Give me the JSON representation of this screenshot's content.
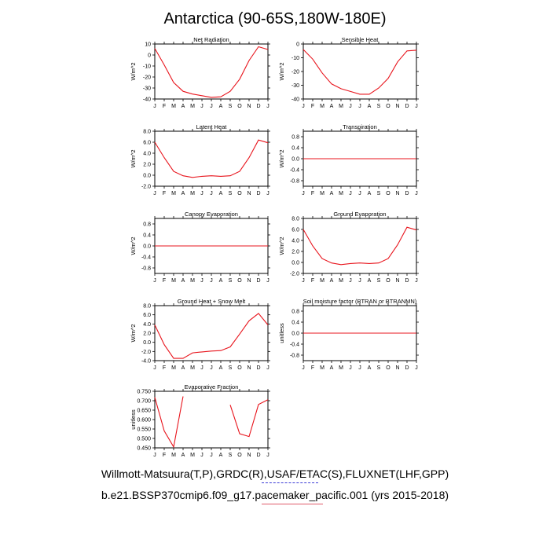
{
  "title": "Antarctica (90-65S,180W-180E)",
  "captions": {
    "line1": "Willmott-Matsuura(T,P),GRDC(R),USAF/ETAC(S),FLUXNET(LHF,GPP)",
    "line2": "b.e21.BSSP370cmip6.f09_g17.pacemaker_pacific.001 (yrs 2015-2018)"
  },
  "colors": {
    "series": "#e8141c",
    "axes": "#000000"
  },
  "chart_data": [
    {
      "type": "line",
      "title": "Net Radiation",
      "ylabel": "W/m^2",
      "x": [
        "J",
        "F",
        "M",
        "A",
        "M",
        "J",
        "J",
        "A",
        "S",
        "O",
        "N",
        "D",
        "J"
      ],
      "ylim": [
        -40,
        10
      ],
      "yticks": [
        10,
        0,
        -10,
        -20,
        -30,
        -40
      ],
      "ytick_labels": [
        "10",
        "0",
        "-10",
        "-20",
        "-30",
        "-40"
      ],
      "values": [
        6,
        -9,
        -25,
        -33,
        -35.5,
        -37,
        -38.5,
        -38,
        -33,
        -22,
        -5,
        7.5,
        5
      ]
    },
    {
      "type": "line",
      "title": "Sensible Heat",
      "ylabel": "W/m^2",
      "x": [
        "J",
        "F",
        "M",
        "A",
        "M",
        "J",
        "J",
        "A",
        "S",
        "O",
        "N",
        "D",
        "J"
      ],
      "ylim": [
        -40,
        0
      ],
      "yticks": [
        0,
        -10,
        -20,
        -30,
        -40
      ],
      "ytick_labels": [
        "0",
        "-10",
        "-20",
        "-30",
        "-40"
      ],
      "values": [
        -4,
        -11,
        -21,
        -29,
        -32.5,
        -34.5,
        -36.5,
        -36.5,
        -32,
        -25,
        -13,
        -5,
        -4.5
      ]
    },
    {
      "type": "line",
      "title": "Latent Heat",
      "ylabel": "W/m^2",
      "x": [
        "J",
        "F",
        "M",
        "A",
        "M",
        "J",
        "J",
        "A",
        "S",
        "O",
        "N",
        "D",
        "J"
      ],
      "ylim": [
        -2,
        8
      ],
      "yticks": [
        8,
        6,
        4,
        2,
        0,
        -2
      ],
      "ytick_labels": [
        "8.0",
        "6.0",
        "4.0",
        "2.0",
        "0.0",
        "-2.0"
      ],
      "values": [
        6,
        3.2,
        0.7,
        -0.1,
        -0.4,
        -0.2,
        -0.1,
        -0.2,
        -0.1,
        0.7,
        3.2,
        6.4,
        5.9
      ]
    },
    {
      "type": "line",
      "title": "Transpiration",
      "ylabel": "W/m^2",
      "x": [
        "J",
        "F",
        "M",
        "A",
        "M",
        "J",
        "J",
        "A",
        "S",
        "O",
        "N",
        "D",
        "J"
      ],
      "ylim": [
        -1,
        1
      ],
      "yticks": [
        0.8,
        0.4,
        0,
        -0.4,
        -0.8
      ],
      "ytick_labels": [
        "0.8",
        "0.4",
        "0.0",
        "-0.4",
        "-0.8"
      ],
      "values": [
        0,
        0,
        0,
        0,
        0,
        0,
        0,
        0,
        0,
        0,
        0,
        0,
        0
      ]
    },
    {
      "type": "line",
      "title": "Canopy Evaporation",
      "ylabel": "W/m^2",
      "x": [
        "J",
        "F",
        "M",
        "A",
        "M",
        "J",
        "J",
        "A",
        "S",
        "O",
        "N",
        "D",
        "J"
      ],
      "ylim": [
        -1,
        1
      ],
      "yticks": [
        0.8,
        0.4,
        0,
        -0.4,
        -0.8
      ],
      "ytick_labels": [
        "0.8",
        "0.4",
        "0.0",
        "-0.4",
        "-0.8"
      ],
      "values": [
        0,
        0,
        0,
        0,
        0,
        0,
        0,
        0,
        0,
        0,
        0,
        0,
        0
      ]
    },
    {
      "type": "line",
      "title": "Ground Evaporation",
      "ylabel": "W/m^2",
      "x": [
        "J",
        "F",
        "M",
        "A",
        "M",
        "J",
        "J",
        "A",
        "S",
        "O",
        "N",
        "D",
        "J"
      ],
      "ylim": [
        -2,
        8
      ],
      "yticks": [
        8,
        6,
        4,
        2,
        0,
        -2
      ],
      "ytick_labels": [
        "8.0",
        "6.0",
        "4.0",
        "2.0",
        "0.0",
        "-2.0"
      ],
      "values": [
        6,
        3,
        0.7,
        -0.1,
        -0.4,
        -0.2,
        -0.1,
        -0.2,
        -0.1,
        0.7,
        3.2,
        6.4,
        5.9
      ]
    },
    {
      "type": "line",
      "title": "Ground Heat + Snow Melt",
      "ylabel": "W/m^2",
      "x": [
        "J",
        "F",
        "M",
        "A",
        "M",
        "J",
        "J",
        "A",
        "S",
        "O",
        "N",
        "D",
        "J"
      ],
      "ylim": [
        -4,
        8
      ],
      "yticks": [
        8,
        6,
        4,
        2,
        0,
        -2,
        -4
      ],
      "ytick_labels": [
        "8.0",
        "6.0",
        "4.0",
        "2.0",
        "0.0",
        "-2.0",
        "-4.0"
      ],
      "values": [
        3.8,
        -0.5,
        -3.5,
        -3.5,
        -2.3,
        -2.1,
        -1.9,
        -1.8,
        -1,
        1.8,
        4.7,
        6.3,
        3.8
      ]
    },
    {
      "type": "line",
      "title": "Soil moisture factor (BTRAN or BTRANMN)",
      "ylabel": "unitless",
      "x": [
        "J",
        "F",
        "M",
        "A",
        "M",
        "J",
        "J",
        "A",
        "S",
        "O",
        "N",
        "D",
        "J"
      ],
      "ylim": [
        -1,
        1
      ],
      "yticks": [
        0.8,
        0.4,
        0,
        -0.4,
        -0.8
      ],
      "ytick_labels": [
        "0.8",
        "0.4",
        "0.0",
        "-0.4",
        "-0.8"
      ],
      "values": [
        0,
        0,
        0,
        0,
        0,
        0,
        0,
        0,
        0,
        0,
        0,
        0,
        0
      ]
    },
    {
      "type": "line",
      "title": "Evaporative Fraction",
      "ylabel": "unitless",
      "x": [
        "J",
        "F",
        "M",
        "A",
        "M",
        "J",
        "J",
        "A",
        "S",
        "O",
        "N",
        "D",
        "J"
      ],
      "ylim": [
        0.45,
        0.75
      ],
      "yticks": [
        0.75,
        0.7,
        0.65,
        0.6,
        0.55,
        0.5,
        0.45
      ],
      "ytick_labels": [
        "0.750",
        "0.700",
        "0.650",
        "0.600",
        "0.550",
        "0.500",
        "0.450"
      ],
      "values": [
        0.718,
        0.54,
        0.455,
        0.723,
        null,
        null,
        null,
        null,
        0.678,
        0.525,
        0.51,
        0.68,
        0.705
      ]
    }
  ]
}
